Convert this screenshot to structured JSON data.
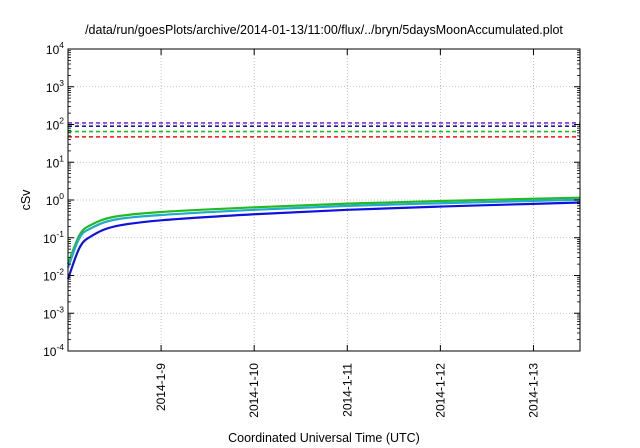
{
  "chart_data": {
    "type": "line",
    "title": "/data/run/goesPlots/archive/2014-01-13/11:00/flux/../bryn/5daysMoonAccumulated.plot",
    "xlabel": "Coordinated Universal Time (UTC)",
    "ylabel": "cSv",
    "x_scale": "time",
    "xlim": [
      "2014-01-08",
      "2014-01-13T12:00"
    ],
    "x_ticks": [
      "2014-1-9",
      "2014-1-10",
      "2014-1-11",
      "2014-1-12",
      "2014-1-13"
    ],
    "y_scale": "log",
    "ylim": [
      0.0001,
      10000
    ],
    "y_ticks": [
      {
        "value": 0.0001,
        "base": "10",
        "exp": "-4"
      },
      {
        "value": 0.001,
        "base": "10",
        "exp": "-3"
      },
      {
        "value": 0.01,
        "base": "10",
        "exp": "-2"
      },
      {
        "value": 0.1,
        "base": "10",
        "exp": "-1"
      },
      {
        "value": 1,
        "base": "10",
        "exp": "0"
      },
      {
        "value": 10,
        "base": "10",
        "exp": "1"
      },
      {
        "value": 100,
        "base": "10",
        "exp": "2"
      },
      {
        "value": 1000,
        "base": "10",
        "exp": "3"
      },
      {
        "value": 10000,
        "base": "10",
        "exp": "4"
      }
    ],
    "grid": true,
    "reference_lines": [
      {
        "y": 110,
        "color": "#8b2be2",
        "style": "dashed"
      },
      {
        "y": 90,
        "color": "#1a1aa0",
        "style": "dashed"
      },
      {
        "y": 65,
        "color": "#22bb22",
        "style": "dashed"
      },
      {
        "y": 47,
        "color": "#ee1111",
        "style": "dashed"
      }
    ],
    "series": [
      {
        "color": "#22bb22",
        "points": [
          [
            "2014-01-08T00:00",
            0.02
          ],
          [
            "2014-01-08T03:00",
            0.12
          ],
          [
            "2014-01-08T06:00",
            0.22
          ],
          [
            "2014-01-08T12:00",
            0.36
          ],
          [
            "2014-01-09T00:00",
            0.48
          ],
          [
            "2014-01-10T00:00",
            0.64
          ],
          [
            "2014-01-11T00:00",
            0.8
          ],
          [
            "2014-01-12T00:00",
            0.94
          ],
          [
            "2014-01-13T00:00",
            1.08
          ],
          [
            "2014-01-13T12:00",
            1.15
          ]
        ]
      },
      {
        "color": "#22aacc",
        "points": [
          [
            "2014-01-08T00:00",
            0.016
          ],
          [
            "2014-01-08T03:00",
            0.1
          ],
          [
            "2014-01-08T06:00",
            0.18
          ],
          [
            "2014-01-08T12:00",
            0.3
          ],
          [
            "2014-01-09T00:00",
            0.4
          ],
          [
            "2014-01-10T00:00",
            0.55
          ],
          [
            "2014-01-11T00:00",
            0.7
          ],
          [
            "2014-01-12T00:00",
            0.82
          ],
          [
            "2014-01-13T00:00",
            0.95
          ],
          [
            "2014-01-13T12:00",
            1.02
          ]
        ]
      },
      {
        "color": "#1111dd",
        "points": [
          [
            "2014-01-08T00:00",
            0.008
          ],
          [
            "2014-01-08T03:00",
            0.055
          ],
          [
            "2014-01-08T06:00",
            0.11
          ],
          [
            "2014-01-08T12:00",
            0.2
          ],
          [
            "2014-01-09T00:00",
            0.29
          ],
          [
            "2014-01-10T00:00",
            0.42
          ],
          [
            "2014-01-11T00:00",
            0.55
          ],
          [
            "2014-01-12T00:00",
            0.67
          ],
          [
            "2014-01-13T00:00",
            0.79
          ],
          [
            "2014-01-13T12:00",
            0.86
          ]
        ]
      }
    ]
  }
}
